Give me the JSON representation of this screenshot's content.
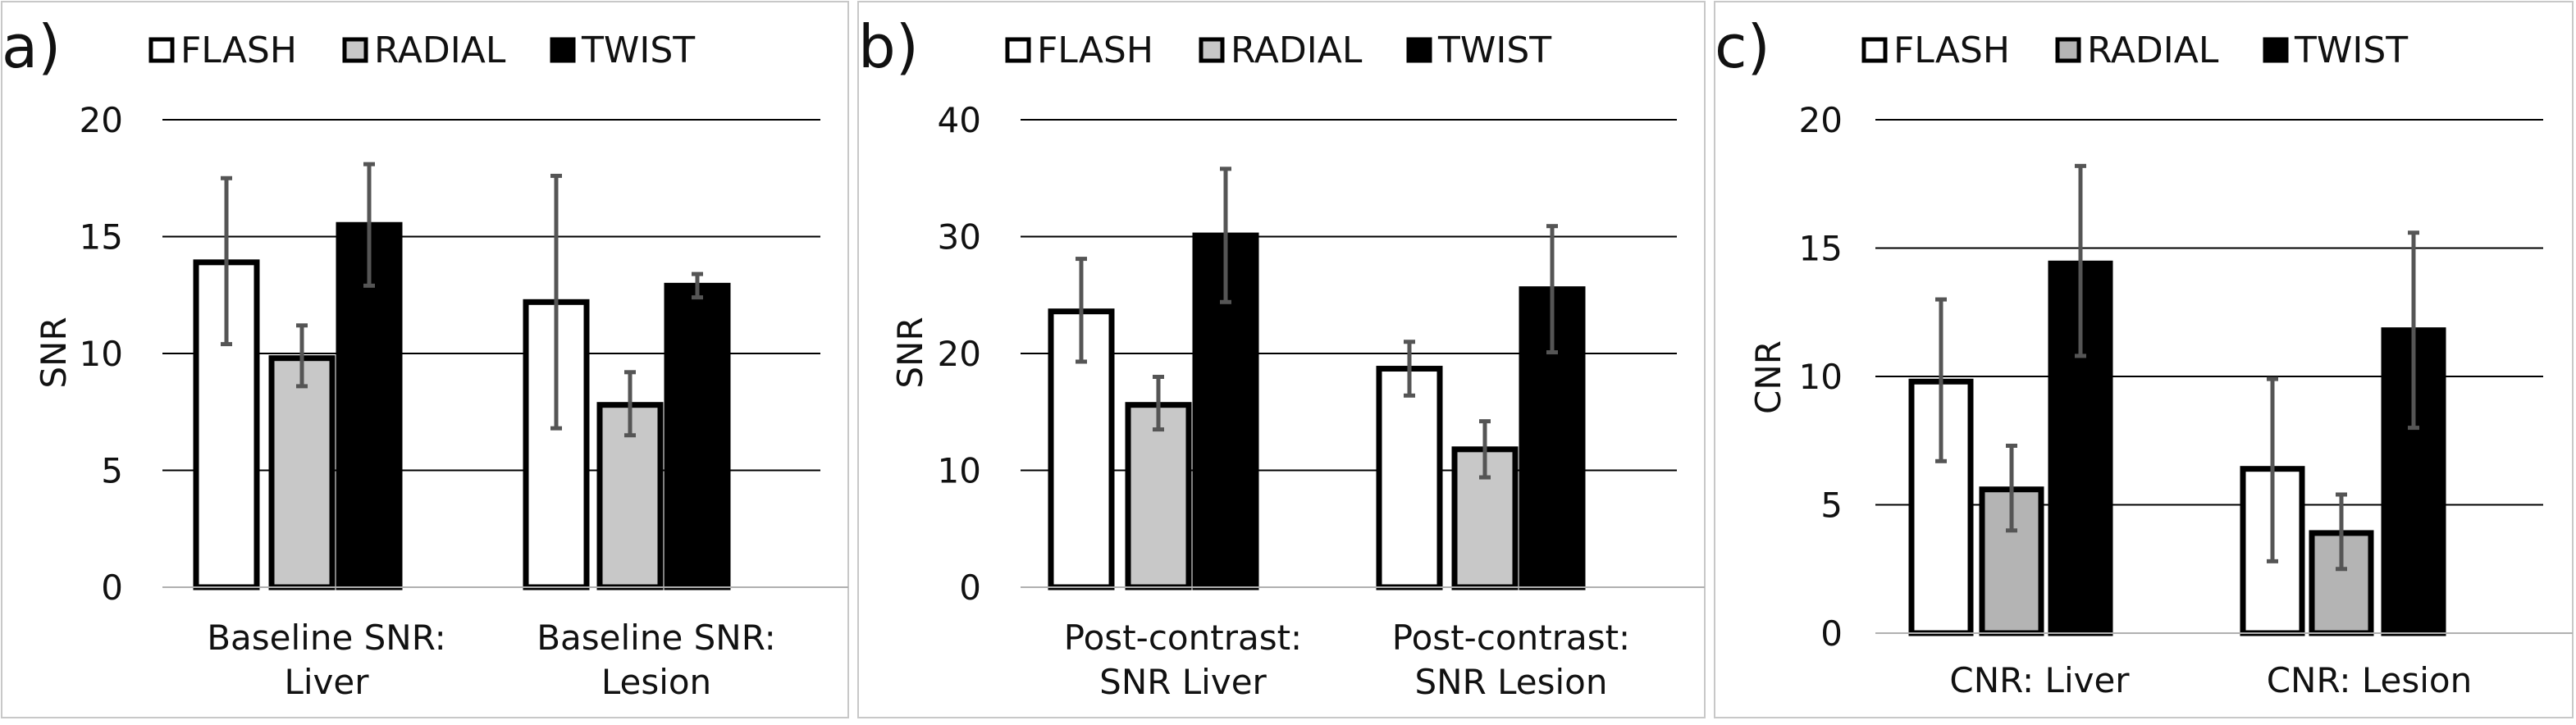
{
  "colors": {
    "flash_fill": "#ffffff",
    "radial_fill": "#c8c8c8",
    "radial_fill_c": "#b4b4b4",
    "twist_fill": "#000000",
    "bar_outline": "#000000",
    "error_bar": "#555555"
  },
  "chart_data": [
    {
      "type": "bar",
      "panel_label": "a)",
      "legend": [
        "FLASH",
        "RADIAL",
        "TWIST"
      ],
      "legend_position": "top",
      "ylabel": "SNR",
      "ylim": [
        0,
        20
      ],
      "yticks": [
        0,
        5,
        10,
        15,
        20
      ],
      "ytick_labels": [
        "0",
        "5",
        "10",
        "15",
        "20"
      ],
      "grid": true,
      "categories": [
        {
          "line1": "Baseline SNR:",
          "line2": "Liver"
        },
        {
          "line1": "Baseline SNR:",
          "line2": "Lesion"
        }
      ],
      "series": [
        {
          "name": "FLASH",
          "values": [
            13.9,
            12.2
          ],
          "err_low": [
            10.4,
            6.8
          ],
          "err_high": [
            17.5,
            17.6
          ]
        },
        {
          "name": "RADIAL",
          "values": [
            9.8,
            7.8
          ],
          "err_low": [
            8.6,
            6.5
          ],
          "err_high": [
            11.2,
            9.2
          ]
        },
        {
          "name": "TWIST",
          "values": [
            15.5,
            12.9
          ],
          "err_low": [
            12.9,
            12.4
          ],
          "err_high": [
            18.1,
            13.4
          ]
        }
      ]
    },
    {
      "type": "bar",
      "panel_label": "b)",
      "legend": [
        "FLASH",
        "RADIAL",
        "TWIST"
      ],
      "legend_position": "top",
      "ylabel": "SNR",
      "ylim": [
        0,
        40
      ],
      "yticks": [
        0,
        10,
        20,
        30,
        40
      ],
      "ytick_labels": [
        "0",
        "10",
        "20",
        "30",
        "40"
      ],
      "grid": true,
      "categories": [
        {
          "line1": "Post-contrast:",
          "line2": "SNR Liver"
        },
        {
          "line1": "Post-contrast:",
          "line2": "SNR Lesion"
        }
      ],
      "series": [
        {
          "name": "FLASH",
          "values": [
            23.6,
            18.7
          ],
          "err_low": [
            19.3,
            16.4
          ],
          "err_high": [
            28.1,
            21.0
          ]
        },
        {
          "name": "RADIAL",
          "values": [
            15.6,
            11.8
          ],
          "err_low": [
            13.5,
            9.4
          ],
          "err_high": [
            18.0,
            14.2
          ]
        },
        {
          "name": "TWIST",
          "values": [
            30.1,
            25.5
          ],
          "err_low": [
            24.4,
            20.1
          ],
          "err_high": [
            35.8,
            30.9
          ]
        }
      ]
    },
    {
      "type": "bar",
      "panel_label": "c)",
      "legend": [
        "FLASH",
        "RADIAL",
        "TWIST"
      ],
      "legend_position": "top",
      "ylabel": "CNR",
      "ylim": [
        0,
        20
      ],
      "yticks": [
        0,
        5,
        10,
        15,
        20
      ],
      "ytick_labels": [
        "0",
        "5",
        "10",
        "15",
        "20"
      ],
      "grid": true,
      "categories": [
        {
          "line1": "CNR: Liver",
          "line2": ""
        },
        {
          "line1": "CNR: Lesion",
          "line2": ""
        }
      ],
      "series": [
        {
          "name": "FLASH",
          "values": [
            9.8,
            6.4
          ],
          "err_low": [
            6.7,
            2.8
          ],
          "err_high": [
            13.0,
            9.9
          ]
        },
        {
          "name": "RADIAL",
          "values": [
            5.6,
            3.9
          ],
          "err_low": [
            4.0,
            2.5
          ],
          "err_high": [
            7.3,
            5.4
          ]
        },
        {
          "name": "TWIST",
          "values": [
            14.4,
            11.8
          ],
          "err_low": [
            10.8,
            8.0
          ],
          "err_high": [
            18.2,
            15.6
          ]
        }
      ]
    }
  ]
}
